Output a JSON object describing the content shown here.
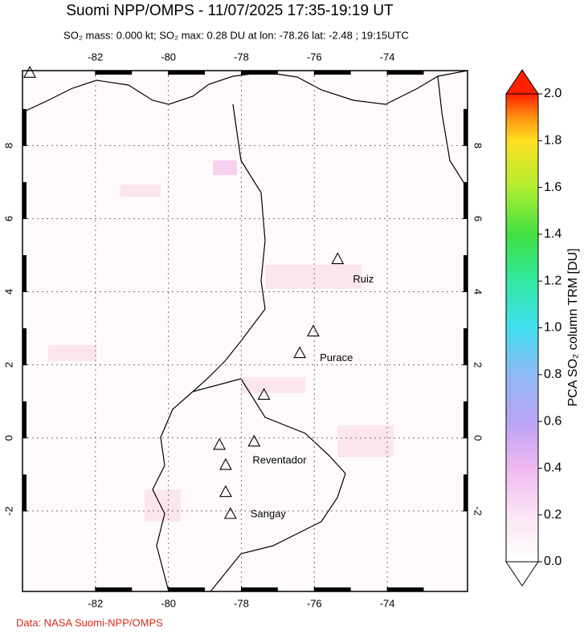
{
  "chart_data": {
    "type": "map",
    "title": "Suomi NPP/OMPS - 11/07/2025 17:35-19:19 UT",
    "subtitle": "SO₂ mass: 0.000 kt; SO₂ max: 0.28 DU at lon: -78.26 lat: -2.48 ; 19:15UTC",
    "xlim": [
      -84,
      -71.8
    ],
    "ylim": [
      -4.2,
      10.05
    ],
    "xticks": [
      -82,
      -80,
      -78,
      -76,
      -74
    ],
    "yticks": [
      -2,
      0,
      2,
      4,
      6,
      8
    ],
    "grid": true,
    "volcanoes": {
      "lon": [
        -83.8,
        -75.36,
        -76.03,
        -76.4,
        -77.38,
        -78.6,
        -77.65,
        -78.43,
        -78.43,
        -78.3
      ],
      "lat": [
        10.0,
        4.9,
        2.92,
        2.33,
        1.19,
        -0.18,
        -0.09,
        -0.73,
        -1.47,
        -2.07
      ],
      "labels": [
        null,
        "Ruiz",
        null,
        "Purace",
        null,
        null,
        "Reventador",
        null,
        null,
        "Sangay"
      ]
    },
    "colorbar": {
      "label": "PCA SO₂ column TRM [DU]",
      "lim": [
        0,
        2
      ],
      "ticks": [
        {
          "value": 0,
          "label": "0.0"
        },
        0.2,
        0.4,
        0.6,
        0.8,
        {
          "value": 1,
          "label": "1.0"
        },
        1.2,
        1.4,
        1.6,
        1.8,
        {
          "value": 2,
          "label": "2.0"
        }
      ]
    },
    "credit": "Data: NASA Suomi-NPP/OMPS"
  }
}
